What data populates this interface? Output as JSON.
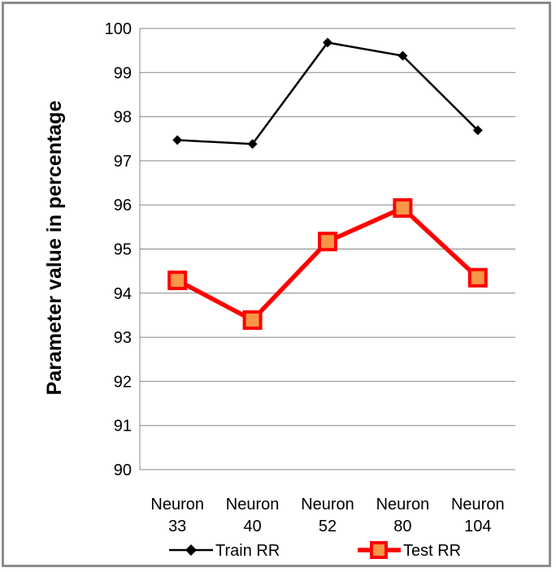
{
  "chart_data": {
    "type": "line",
    "categories": [
      [
        "Neuron",
        "33"
      ],
      [
        "Neuron",
        "40"
      ],
      [
        "Neuron",
        "52"
      ],
      [
        "Neuron",
        "80"
      ],
      [
        "Neuron",
        "104"
      ]
    ],
    "series": [
      {
        "name": "Train RR",
        "values": [
          97.47,
          97.38,
          99.68,
          99.38,
          97.69
        ],
        "color": "#000000",
        "marker": "diamond"
      },
      {
        "name": "Test RR",
        "values": [
          94.29,
          93.39,
          95.17,
          95.93,
          94.35
        ],
        "color": "#ff0000",
        "marker": "square",
        "marker_fill": "#f79646"
      }
    ],
    "ylabel": "Parameter value in percentage",
    "xlabel": "",
    "ylim": [
      90,
      100
    ],
    "yticks": [
      "90",
      "91",
      "92",
      "93",
      "94",
      "95",
      "96",
      "97",
      "98",
      "99",
      "100"
    ],
    "grid": "horizontal",
    "legend_position": "bottom"
  }
}
